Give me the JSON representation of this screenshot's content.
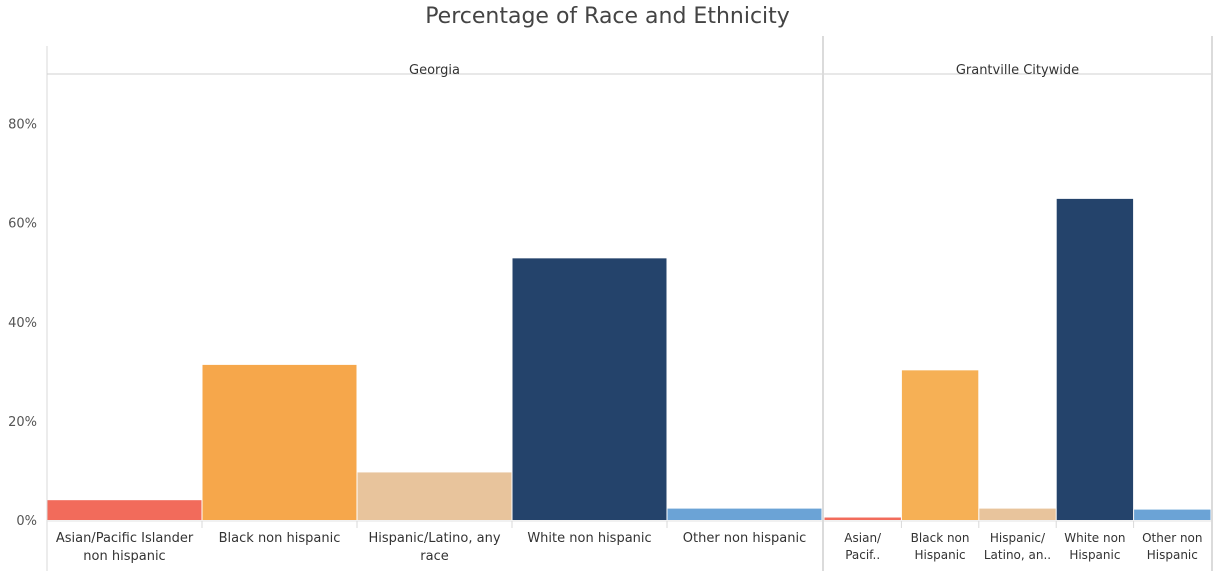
{
  "chart_data": {
    "type": "bar",
    "title": "Percentage of Race and Ethnicity",
    "xlabel": "",
    "ylabel": "",
    "ylim": [
      0,
      90
    ],
    "yticks": [
      "0%",
      "20%",
      "40%",
      "60%",
      "80%"
    ],
    "ytick_values": [
      0,
      20,
      40,
      60,
      80
    ],
    "grid": false,
    "panels": [
      {
        "name": "Georgia",
        "categories": [
          [
            "Asian/Pacific Islander",
            "non hispanic"
          ],
          [
            "Black non hispanic"
          ],
          [
            "Hispanic/Latino, any",
            "race"
          ],
          [
            "White non hispanic"
          ],
          [
            "Other non hispanic"
          ]
        ],
        "values": [
          4.0,
          31.3,
          9.6,
          52.8,
          2.3
        ],
        "colors": [
          "#f26b5b",
          "#f6a74b",
          "#e8c49c",
          "#24436b",
          "#6ba3d6"
        ]
      },
      {
        "name": "Grantville Citywide",
        "categories": [
          [
            "Asian/",
            "Pacif.."
          ],
          [
            "Black non",
            "Hispanic"
          ],
          [
            "Hispanic/",
            "Latino, an.."
          ],
          [
            "White non",
            "Hispanic"
          ],
          [
            "Other non",
            "Hispanic"
          ]
        ],
        "values": [
          0.5,
          30.2,
          2.3,
          64.8,
          2.1
        ],
        "colors": [
          "#f26b5b",
          "#f6b055",
          "#e8c49c",
          "#24436b",
          "#6ba3d6"
        ]
      }
    ]
  }
}
